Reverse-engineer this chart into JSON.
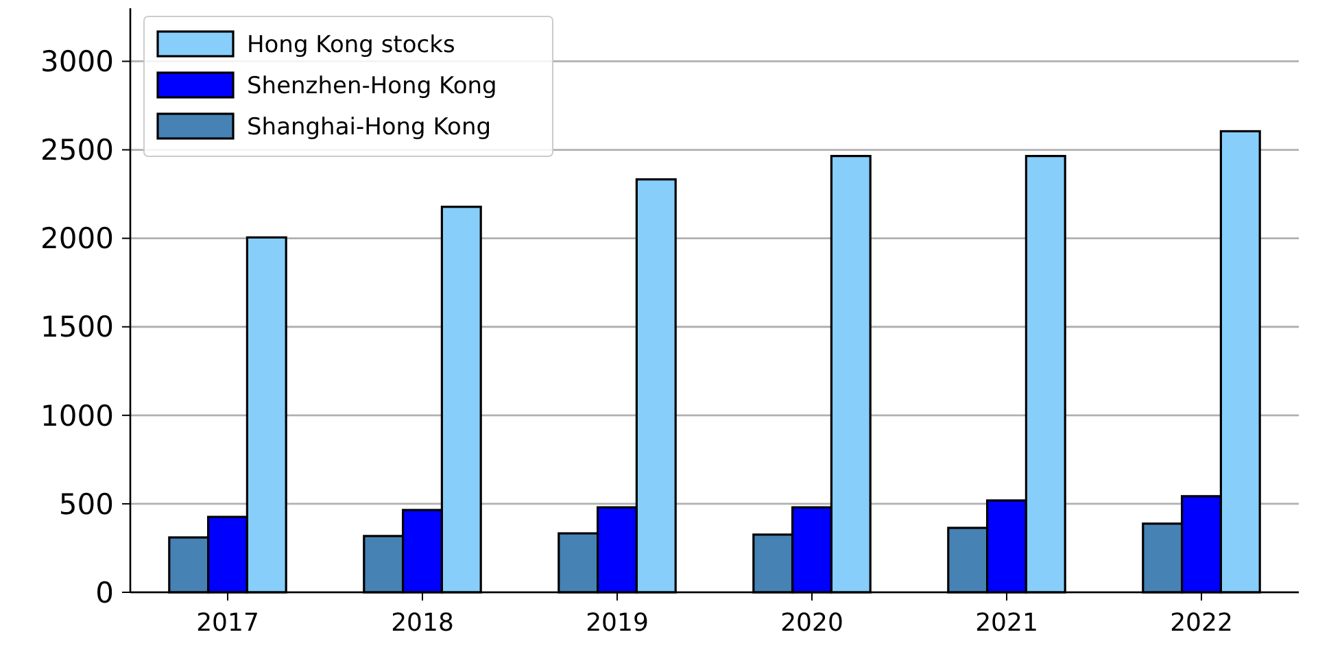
{
  "chart_data": {
    "type": "bar",
    "categories": [
      "2017",
      "2018",
      "2019",
      "2020",
      "2021",
      "2022"
    ],
    "series": [
      {
        "name": "Shanghai-Hong Kong",
        "color": "#4682b4",
        "values": [
          310,
          318,
          333,
          326,
          364,
          388
        ]
      },
      {
        "name": "Shenzhen-Hong Kong",
        "color": "#0000ff",
        "values": [
          426,
          465,
          480,
          480,
          519,
          543
        ]
      },
      {
        "name": "Hong Kong stocks",
        "color": "#87cefa",
        "values": [
          2005,
          2178,
          2333,
          2465,
          2465,
          2605
        ]
      }
    ],
    "ylim": [
      0,
      3300
    ],
    "yticks": [
      0,
      500,
      1000,
      1500,
      2000,
      2500,
      3000
    ],
    "grid": "y",
    "legend": "top left"
  }
}
